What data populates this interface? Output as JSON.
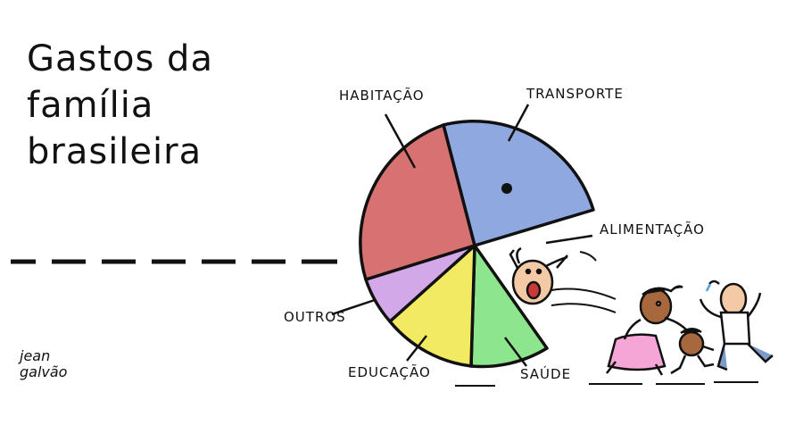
{
  "title_lines": [
    "Gastos da",
    "família",
    "brasileira"
  ],
  "signature_lines": [
    "jean",
    "galvão"
  ],
  "chart_data": {
    "type": "pie",
    "title": "Gastos da família brasileira",
    "slices": [
      {
        "label": "TRANSPORTE",
        "color": "#8fa9e0"
      },
      {
        "label": "ALIMENTAÇÃO",
        "color": "#ffffff"
      },
      {
        "label": "SAÚDE",
        "color": "#8de58d"
      },
      {
        "label": "EDUCAÇÃO",
        "color": "#f2ea62"
      },
      {
        "label": "OUTROS",
        "color": "#d2a8e8"
      },
      {
        "label": "HABITAÇÃO",
        "color": "#d87272"
      }
    ]
  },
  "illustration": {
    "description_icon": "family-running-icon",
    "colors": {
      "ink": "#111111",
      "skin": "#f3c9a6",
      "skin_dark": "#a8683e",
      "dress": "#f6a6d6",
      "pants": "#7d9bc9"
    }
  }
}
